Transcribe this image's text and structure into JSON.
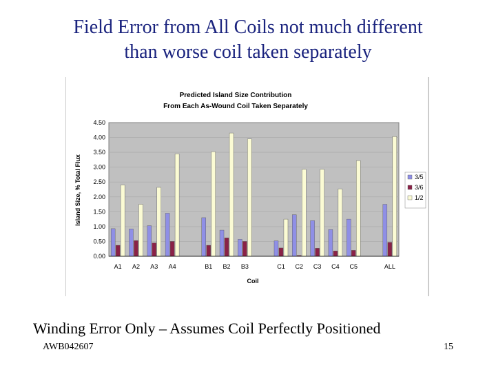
{
  "slide": {
    "title_line1": "Field Error from All Coils not much different",
    "title_line2": "than worse coil taken separately",
    "caption": "Winding Error Only – Assumes Coil Perfectly Positioned",
    "footer_left": "AWB042607",
    "page_number": "15"
  },
  "colors": {
    "series_3_5": "#8f8fe6",
    "series_3_6": "#8a2247",
    "series_1_2": "#fbfbd4",
    "plot_bg": "#c0c0c0"
  },
  "chart_data": {
    "type": "bar",
    "title_line1": "Predicted Island Size Contribution",
    "title_line2": "From Each As-Wound Coil Taken Separately",
    "xlabel": "Coil",
    "ylabel": "Island Size, % Total Flux",
    "ylim": [
      0,
      4.5
    ],
    "yticks": [
      "0.00",
      "0.50",
      "1.00",
      "1.50",
      "2.00",
      "2.50",
      "3.00",
      "3.50",
      "4.00",
      "4.50"
    ],
    "grid": true,
    "legend_position": "right",
    "categories": [
      "A1",
      "A2",
      "A3",
      "A4",
      "",
      "B1",
      "B2",
      "B3",
      "",
      "C1",
      "C2",
      "C3",
      "C4",
      "C5",
      "",
      "ALL"
    ],
    "series": [
      {
        "name": "3/5",
        "values": [
          0.93,
          0.92,
          1.03,
          1.45,
          null,
          1.3,
          0.88,
          0.57,
          null,
          0.52,
          1.4,
          1.2,
          0.9,
          1.25,
          null,
          1.75
        ]
      },
      {
        "name": "3/6",
        "values": [
          0.37,
          0.53,
          0.45,
          0.5,
          null,
          0.37,
          0.62,
          0.5,
          null,
          0.28,
          0.03,
          0.27,
          0.18,
          0.2,
          null,
          0.47
        ]
      },
      {
        "name": "1/2",
        "values": [
          2.4,
          1.75,
          2.32,
          3.45,
          null,
          3.52,
          4.15,
          3.95,
          null,
          1.25,
          2.93,
          2.93,
          2.27,
          3.22,
          null,
          4.03
        ]
      }
    ]
  }
}
